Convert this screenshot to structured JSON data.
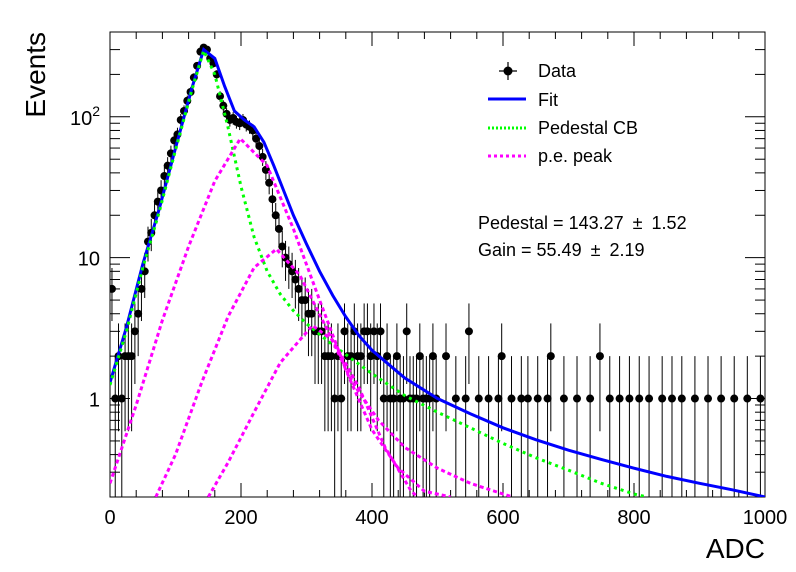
{
  "chart_data": {
    "type": "scatter",
    "xlabel": "ADC",
    "ylabel": "Events",
    "xlim": [
      0,
      1000
    ],
    "ylim": [
      0.2,
      400
    ],
    "y_scale": "log",
    "x_ticks": [
      "0",
      "200",
      "400",
      "600",
      "800",
      "1000"
    ],
    "y_ticks": [
      "1",
      "10",
      "10^2"
    ],
    "grid": false,
    "legend_position": "top-right",
    "legend": [
      {
        "label": "Data",
        "style": "marker",
        "color": "#000000"
      },
      {
        "label": "Fit",
        "style": "solid",
        "color": "#0000ff"
      },
      {
        "label": "Pedestal CB",
        "style": "dotted",
        "color": "#00ff00"
      },
      {
        "label": "p.e. peak",
        "style": "dotted",
        "color": "#ff00ff"
      }
    ],
    "annotations": {
      "pedestal_label": "Pedestal = 143.27",
      "pedestal_error": "1.52",
      "gain_label": "Gain = 55.49",
      "gain_error": "2.19",
      "pm": "±"
    },
    "series": [
      {
        "name": "Data",
        "kind": "points_with_errors",
        "color": "#000000",
        "x": [
          3,
          8,
          13,
          18,
          23,
          28,
          33,
          38,
          43,
          48,
          53,
          58,
          63,
          68,
          73,
          78,
          83,
          88,
          93,
          98,
          103,
          108,
          113,
          118,
          123,
          128,
          133,
          138,
          143,
          148,
          153,
          158,
          163,
          168,
          173,
          178,
          183,
          188,
          193,
          198,
          203,
          208,
          213,
          218,
          223,
          228,
          233,
          238,
          243,
          248,
          253,
          258,
          263,
          268,
          273,
          278,
          283,
          288,
          293,
          298,
          303,
          308,
          313,
          318,
          323,
          328,
          333,
          338,
          343,
          348,
          353,
          358,
          363,
          368,
          373,
          378,
          383,
          388,
          393,
          398,
          403,
          408,
          413,
          418,
          423,
          428,
          433,
          438,
          443,
          448,
          453,
          458,
          463,
          468,
          473,
          478,
          483,
          488,
          493,
          498,
          513,
          528,
          543,
          548,
          563,
          578,
          593,
          598,
          613,
          628,
          638,
          653,
          668,
          673,
          693,
          713,
          733,
          748,
          763,
          778,
          793,
          808,
          823,
          843,
          858,
          873,
          893,
          913,
          933,
          953,
          973,
          993
        ],
        "y": [
          6,
          1,
          2,
          1,
          2,
          2,
          2,
          3,
          4,
          6,
          8,
          13,
          15,
          20,
          25,
          30,
          38,
          45,
          55,
          68,
          75,
          95,
          110,
          130,
          150,
          190,
          230,
          290,
          310,
          300,
          260,
          240,
          200,
          140,
          120,
          105,
          95,
          98,
          92,
          90,
          95,
          88,
          85,
          80,
          70,
          62,
          52,
          42,
          34,
          26,
          20,
          16,
          12,
          10,
          9,
          8,
          7,
          6,
          5,
          5,
          4,
          4,
          3,
          3,
          3,
          2,
          2,
          2,
          1,
          2,
          1,
          3,
          2,
          2,
          3,
          2,
          2,
          3,
          3,
          2,
          3,
          2,
          3,
          1,
          2,
          1,
          1,
          2,
          1,
          1,
          3,
          1,
          1,
          1,
          2,
          1,
          1,
          1,
          2,
          1,
          2,
          1,
          1,
          3,
          1,
          1,
          1,
          2,
          1,
          1,
          1,
          1,
          1,
          2,
          1,
          1,
          1,
          2,
          1,
          1,
          1,
          1,
          1,
          1,
          1,
          1,
          1,
          1,
          1,
          1,
          1,
          1
        ]
      },
      {
        "name": "Fit",
        "kind": "curve",
        "color": "#0000ff",
        "x": [
          0,
          25,
          50,
          75,
          100,
          125,
          143,
          160,
          175,
          190,
          205,
          220,
          235,
          250,
          265,
          280,
          300,
          320,
          340,
          360,
          380,
          400,
          450,
          500,
          550,
          600,
          650,
          700,
          750,
          800,
          850,
          900,
          950,
          1000
        ],
        "y": [
          1.3,
          3.2,
          9,
          22,
          60,
          160,
          300,
          260,
          165,
          110,
          95,
          85,
          66,
          45,
          30,
          20,
          12.5,
          8,
          5.4,
          3.8,
          2.8,
          2.2,
          1.4,
          1.0,
          0.78,
          0.62,
          0.51,
          0.43,
          0.37,
          0.32,
          0.28,
          0.25,
          0.225,
          0.2
        ]
      },
      {
        "name": "Pedestal CB",
        "kind": "curve",
        "color": "#00ff00",
        "x": [
          0,
          25,
          50,
          75,
          100,
          125,
          143,
          160,
          180,
          200,
          220,
          240,
          260,
          280,
          300,
          340,
          400,
          450,
          500,
          550,
          600,
          650,
          700,
          750,
          800,
          820
        ],
        "y": [
          1.25,
          3,
          8.5,
          21,
          58,
          155,
          295,
          200,
          85,
          32,
          14,
          8,
          5.5,
          4.2,
          3.4,
          2.4,
          1.5,
          1.05,
          0.8,
          0.62,
          0.48,
          0.38,
          0.31,
          0.25,
          0.21,
          0.2
        ]
      },
      {
        "name": "p.e. peak",
        "kind": "curve",
        "color": "#ff00ff",
        "x": [
          0,
          40,
          80,
          120,
          160,
          199,
          240,
          280,
          320,
          360,
          400,
          440,
          480,
          520
        ],
        "y": [
          0.25,
          0.9,
          3.6,
          12,
          35,
          70,
          45,
          16,
          5,
          1.6,
          0.6,
          0.32,
          0.22,
          0.2
        ]
      },
      {
        "name": "p.e. peak",
        "kind": "curve",
        "color": "#ff00ff",
        "x": [
          70,
          100,
          140,
          180,
          220,
          254,
          290,
          330,
          370,
          410,
          450,
          500,
          550,
          600,
          615
        ],
        "y": [
          0.2,
          0.4,
          1.3,
          3.8,
          8.5,
          11.5,
          7.5,
          3.2,
          1.3,
          0.7,
          0.45,
          0.32,
          0.25,
          0.21,
          0.2
        ]
      },
      {
        "name": "p.e. peak",
        "kind": "curve",
        "color": "#ff00ff",
        "x": [
          150,
          180,
          220,
          260,
          309,
          340,
          380,
          420,
          460,
          470
        ],
        "y": [
          0.2,
          0.35,
          0.8,
          1.8,
          3.3,
          2.6,
          1.2,
          0.45,
          0.22,
          0.2
        ]
      }
    ]
  }
}
